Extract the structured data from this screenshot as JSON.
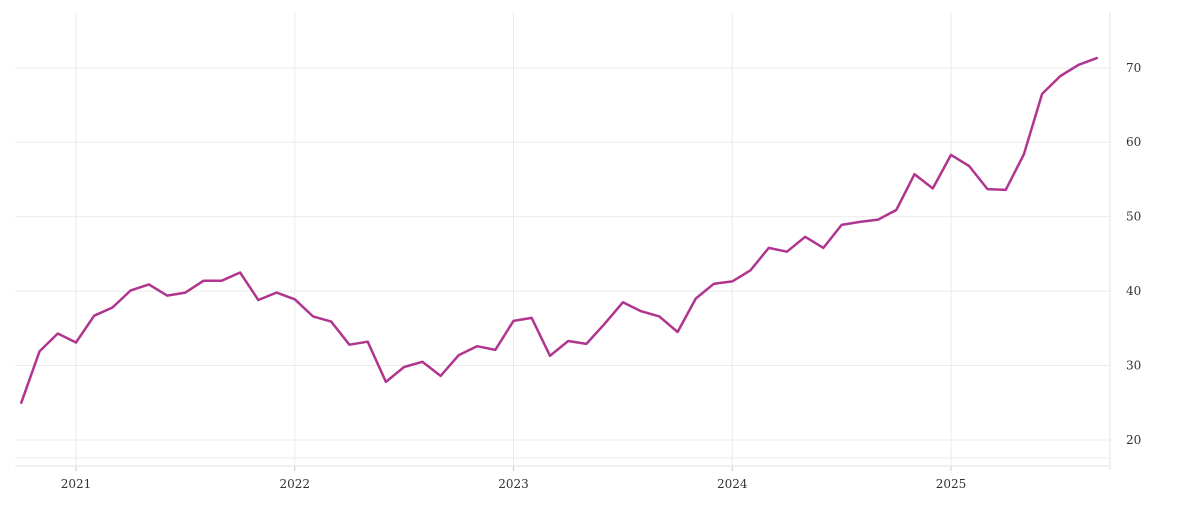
{
  "chart_data": {
    "type": "line",
    "title": "",
    "xlabel": "",
    "ylabel": "",
    "x_ticks": [
      "2021",
      "2022",
      "2023",
      "2024",
      "2025"
    ],
    "y_ticks": [
      20,
      30,
      40,
      50,
      60,
      70
    ],
    "ylim": [
      16.5,
      77.5
    ],
    "xlim": [
      "2020-10",
      "2025-09"
    ],
    "grid": true,
    "legend": "none",
    "series": [
      {
        "color": "#b0358f",
        "x": [
          "2020-10",
          "2020-11",
          "2020-12",
          "2021-01",
          "2021-02",
          "2021-03",
          "2021-04",
          "2021-05",
          "2021-06",
          "2021-07",
          "2021-08",
          "2021-09",
          "2021-10",
          "2021-11",
          "2021-12",
          "2022-01",
          "2022-02",
          "2022-03",
          "2022-04",
          "2022-05",
          "2022-06",
          "2022-07",
          "2022-08",
          "2022-09",
          "2022-10",
          "2022-11",
          "2022-12",
          "2023-01",
          "2023-02",
          "2023-03",
          "2023-04",
          "2023-05",
          "2023-06",
          "2023-07",
          "2023-08",
          "2023-09",
          "2023-10",
          "2023-11",
          "2023-12",
          "2024-01",
          "2024-02",
          "2024-03",
          "2024-04",
          "2024-05",
          "2024-06",
          "2024-07",
          "2024-08",
          "2024-09",
          "2024-10",
          "2024-11",
          "2024-12",
          "2025-01",
          "2025-02",
          "2025-03",
          "2025-04",
          "2025-05",
          "2025-06",
          "2025-07",
          "2025-08",
          "2025-09"
        ],
        "values": [
          25.0,
          31.9,
          34.3,
          33.1,
          36.7,
          37.8,
          40.1,
          40.9,
          39.4,
          39.8,
          41.4,
          41.4,
          42.5,
          38.8,
          39.8,
          38.9,
          36.6,
          35.9,
          32.8,
          33.2,
          27.8,
          29.8,
          30.5,
          28.6,
          31.4,
          32.6,
          32.1,
          36.0,
          36.4,
          31.3,
          33.3,
          32.9,
          35.6,
          38.5,
          37.3,
          36.6,
          34.5,
          39.0,
          41.0,
          41.3,
          42.8,
          45.8,
          45.3,
          47.3,
          45.8,
          48.9,
          49.3,
          49.6,
          50.9,
          55.7,
          53.8,
          58.3,
          56.8,
          53.7,
          53.6,
          58.4,
          66.5,
          68.9,
          70.4,
          71.3
        ]
      }
    ]
  }
}
